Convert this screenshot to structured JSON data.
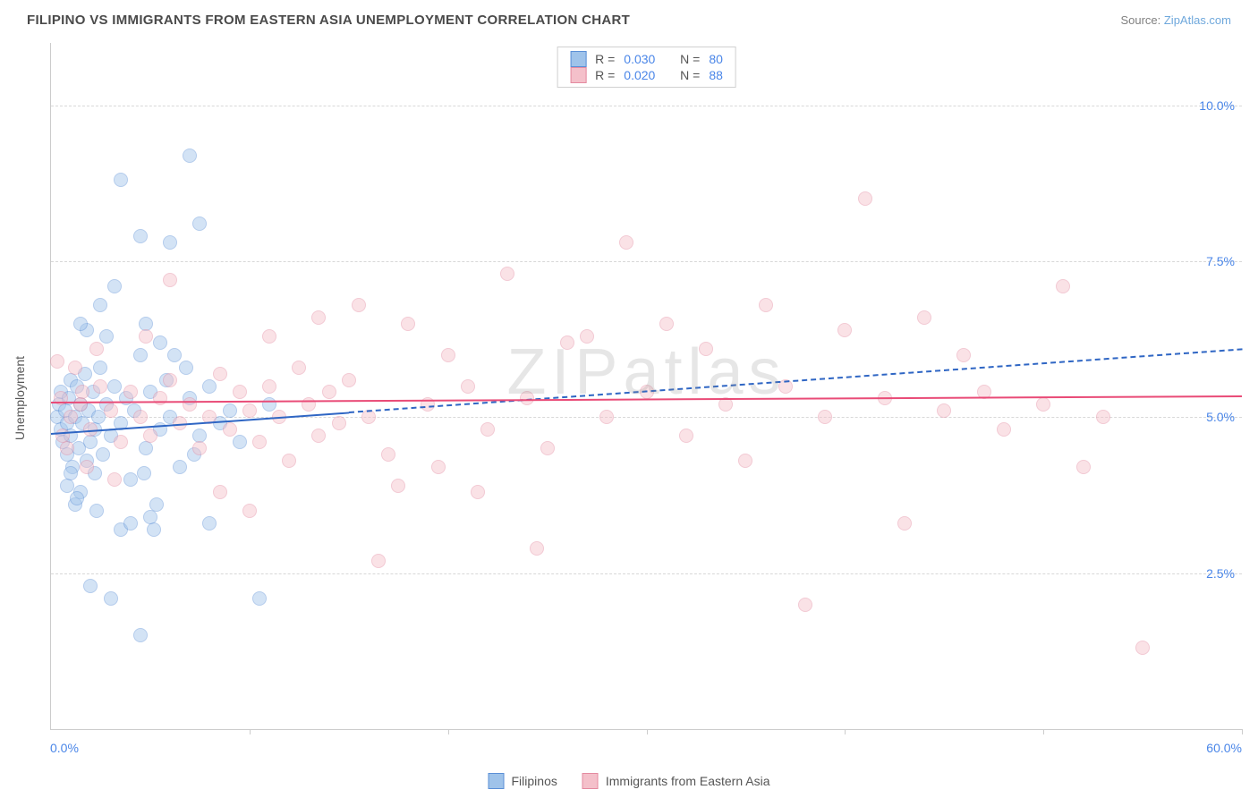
{
  "header": {
    "title": "FILIPINO VS IMMIGRANTS FROM EASTERN ASIA UNEMPLOYMENT CORRELATION CHART",
    "source_prefix": "Source: ",
    "source_link": "ZipAtlas.com"
  },
  "chart": {
    "type": "scatter",
    "ylabel": "Unemployment",
    "watermark": "ZIPatlas",
    "background_color": "#ffffff",
    "grid_color": "#d8d8d8",
    "axis_color": "#cccccc",
    "tick_label_color": "#4a86e8",
    "xlim": [
      0,
      60
    ],
    "ylim": [
      0,
      11
    ],
    "xticks": [
      0,
      10,
      20,
      30,
      40,
      50,
      60
    ],
    "xtick_labels": {
      "min": "0.0%",
      "max": "60.0%"
    },
    "yticks": [
      2.5,
      5.0,
      7.5,
      10.0
    ],
    "ytick_labels": [
      "2.5%",
      "5.0%",
      "7.5%",
      "10.0%"
    ],
    "marker_radius": 8,
    "marker_opacity": 0.45,
    "series": [
      {
        "id": "filipinos",
        "label": "Filipinos",
        "fill_color": "#9fc3ea",
        "stroke_color": "#5b8fd6",
        "trend_color": "#2f66c4",
        "trend_solid_until_x": 15,
        "trend_y_at_x0": 4.75,
        "trend_y_at_x60": 6.1,
        "R": "0.030",
        "N": "80",
        "points": [
          [
            0.3,
            5.0
          ],
          [
            0.4,
            5.2
          ],
          [
            0.5,
            4.8
          ],
          [
            0.5,
            5.4
          ],
          [
            0.6,
            4.6
          ],
          [
            0.7,
            5.1
          ],
          [
            0.8,
            4.9
          ],
          [
            0.8,
            4.4
          ],
          [
            0.9,
            5.3
          ],
          [
            1.0,
            4.7
          ],
          [
            1.0,
            5.6
          ],
          [
            1.1,
            4.2
          ],
          [
            1.2,
            5.0
          ],
          [
            1.3,
            5.5
          ],
          [
            1.4,
            4.5
          ],
          [
            1.5,
            5.2
          ],
          [
            1.5,
            3.8
          ],
          [
            1.6,
            4.9
          ],
          [
            1.7,
            5.7
          ],
          [
            1.8,
            4.3
          ],
          [
            1.9,
            5.1
          ],
          [
            2.0,
            4.6
          ],
          [
            2.1,
            5.4
          ],
          [
            2.2,
            4.8
          ],
          [
            2.3,
            3.5
          ],
          [
            2.4,
            5.0
          ],
          [
            2.5,
            5.8
          ],
          [
            2.6,
            4.4
          ],
          [
            2.8,
            5.2
          ],
          [
            3.0,
            4.7
          ],
          [
            3.2,
            5.5
          ],
          [
            3.5,
            4.9
          ],
          [
            3.8,
            5.3
          ],
          [
            4.0,
            4.0
          ],
          [
            4.2,
            5.1
          ],
          [
            4.5,
            6.0
          ],
          [
            4.8,
            4.5
          ],
          [
            5.0,
            5.4
          ],
          [
            5.2,
            3.2
          ],
          [
            5.5,
            4.8
          ],
          [
            5.8,
            5.6
          ],
          [
            6.0,
            5.0
          ],
          [
            6.5,
            4.2
          ],
          [
            7.0,
            5.3
          ],
          [
            7.5,
            4.7
          ],
          [
            8.0,
            5.5
          ],
          [
            8.5,
            4.9
          ],
          [
            3.5,
            8.8
          ],
          [
            7.0,
            9.2
          ],
          [
            4.5,
            7.9
          ],
          [
            3.0,
            2.1
          ],
          [
            4.5,
            1.5
          ],
          [
            3.5,
            3.2
          ],
          [
            5.0,
            3.4
          ],
          [
            4.0,
            3.3
          ],
          [
            2.0,
            2.3
          ],
          [
            6.0,
            7.8
          ],
          [
            7.5,
            8.1
          ],
          [
            5.5,
            6.2
          ],
          [
            6.2,
            6.0
          ],
          [
            1.8,
            6.4
          ],
          [
            2.5,
            6.8
          ],
          [
            3.2,
            7.1
          ],
          [
            1.2,
            3.6
          ],
          [
            1.5,
            6.5
          ],
          [
            0.8,
            3.9
          ],
          [
            2.8,
            6.3
          ],
          [
            4.8,
            6.5
          ],
          [
            9.0,
            5.1
          ],
          [
            9.5,
            4.6
          ],
          [
            10.5,
            2.1
          ],
          [
            8.0,
            3.3
          ],
          [
            11.0,
            5.2
          ],
          [
            7.2,
            4.4
          ],
          [
            6.8,
            5.8
          ],
          [
            5.3,
            3.6
          ],
          [
            4.7,
            4.1
          ],
          [
            1.0,
            4.1
          ],
          [
            1.3,
            3.7
          ],
          [
            2.2,
            4.1
          ]
        ]
      },
      {
        "id": "immigrants",
        "label": "Immigrants from Eastern Asia",
        "fill_color": "#f4c0ca",
        "stroke_color": "#e48aa0",
        "trend_color": "#e94b77",
        "trend_solid_until_x": 60,
        "trend_y_at_x0": 5.25,
        "trend_y_at_x60": 5.35,
        "R": "0.020",
        "N": "88",
        "points": [
          [
            0.5,
            5.3
          ],
          [
            1.0,
            5.0
          ],
          [
            1.5,
            5.2
          ],
          [
            2.0,
            4.8
          ],
          [
            2.5,
            5.5
          ],
          [
            3.0,
            5.1
          ],
          [
            3.5,
            4.6
          ],
          [
            4.0,
            5.4
          ],
          [
            4.5,
            5.0
          ],
          [
            5.0,
            4.7
          ],
          [
            5.5,
            5.3
          ],
          [
            6.0,
            5.6
          ],
          [
            6.5,
            4.9
          ],
          [
            7.0,
            5.2
          ],
          [
            7.5,
            4.5
          ],
          [
            8.0,
            5.0
          ],
          [
            8.5,
            5.7
          ],
          [
            9.0,
            4.8
          ],
          [
            9.5,
            5.4
          ],
          [
            10.0,
            5.1
          ],
          [
            10.5,
            4.6
          ],
          [
            11.0,
            5.5
          ],
          [
            11.5,
            5.0
          ],
          [
            12.0,
            4.3
          ],
          [
            12.5,
            5.8
          ],
          [
            13.0,
            5.2
          ],
          [
            13.5,
            4.7
          ],
          [
            14.0,
            5.4
          ],
          [
            14.5,
            4.9
          ],
          [
            15.0,
            5.6
          ],
          [
            16.0,
            5.0
          ],
          [
            17.0,
            4.4
          ],
          [
            18.0,
            6.5
          ],
          [
            19.0,
            5.2
          ],
          [
            20.0,
            6.0
          ],
          [
            21.0,
            5.5
          ],
          [
            22.0,
            4.8
          ],
          [
            23.0,
            7.3
          ],
          [
            24.0,
            5.3
          ],
          [
            25.0,
            4.5
          ],
          [
            26.0,
            6.2
          ],
          [
            27.0,
            6.3
          ],
          [
            28.0,
            5.0
          ],
          [
            29.0,
            7.8
          ],
          [
            30.0,
            5.4
          ],
          [
            31.0,
            6.5
          ],
          [
            32.0,
            4.7
          ],
          [
            33.0,
            6.1
          ],
          [
            34.0,
            5.2
          ],
          [
            35.0,
            4.3
          ],
          [
            36.0,
            6.8
          ],
          [
            37.0,
            5.5
          ],
          [
            38.0,
            2.0
          ],
          [
            39.0,
            5.0
          ],
          [
            40.0,
            6.4
          ],
          [
            41.0,
            8.5
          ],
          [
            42.0,
            5.3
          ],
          [
            43.0,
            3.3
          ],
          [
            44.0,
            6.6
          ],
          [
            45.0,
            5.1
          ],
          [
            46.0,
            6.0
          ],
          [
            47.0,
            5.4
          ],
          [
            48.0,
            4.8
          ],
          [
            50.0,
            5.2
          ],
          [
            51.0,
            7.1
          ],
          [
            52.0,
            4.2
          ],
          [
            55.0,
            1.3
          ],
          [
            53.0,
            5.0
          ],
          [
            15.5,
            6.8
          ],
          [
            17.5,
            3.9
          ],
          [
            19.5,
            4.2
          ],
          [
            6.0,
            7.2
          ],
          [
            8.5,
            3.8
          ],
          [
            11.0,
            6.3
          ],
          [
            13.5,
            6.6
          ],
          [
            10.0,
            3.5
          ],
          [
            21.5,
            3.8
          ],
          [
            24.5,
            2.9
          ],
          [
            16.5,
            2.7
          ],
          [
            0.8,
            4.5
          ],
          [
            1.2,
            5.8
          ],
          [
            1.8,
            4.2
          ],
          [
            2.3,
            6.1
          ],
          [
            3.2,
            4.0
          ],
          [
            4.8,
            6.3
          ],
          [
            0.3,
            5.9
          ],
          [
            0.6,
            4.7
          ],
          [
            1.6,
            5.4
          ]
        ]
      }
    ]
  },
  "legend_top": {
    "r_label": "R =",
    "n_label": "N ="
  },
  "legend_bottom": {
    "items": [
      "Filipinos",
      "Immigrants from Eastern Asia"
    ]
  }
}
